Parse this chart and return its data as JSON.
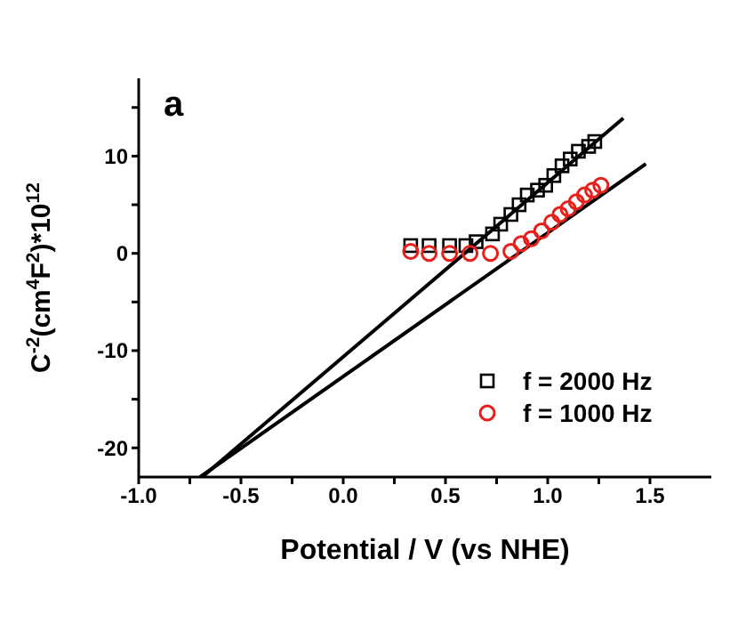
{
  "chart_data": {
    "type": "scatter",
    "xlabel": "Potential / V (vs NHE)",
    "ylabel": "C$^{-2}$(cm$^{4}$F$^{2}$)*10$^{12}$",
    "annotations": [
      "a"
    ],
    "xlim": [
      -1.0,
      1.8
    ],
    "xticks": [
      {
        "value": -1.0,
        "label": "-1.0"
      },
      {
        "value": -0.75,
        "label": null
      },
      {
        "value": -0.5,
        "label": "-0.5"
      },
      {
        "value": -0.25,
        "label": null
      },
      {
        "value": 0,
        "label": "0.0"
      },
      {
        "value": 0.25,
        "label": null
      },
      {
        "value": 0.5,
        "label": "0.5"
      },
      {
        "value": 0.75,
        "label": null
      },
      {
        "value": 1.0,
        "label": "1.0"
      },
      {
        "value": 1.25,
        "label": null
      },
      {
        "value": 1.5,
        "label": "1.5"
      }
    ],
    "ylim": [
      -23,
      18
    ],
    "yticks": [
      -20,
      {
        "value": -15,
        "label": null
      },
      -10,
      {
        "value": -5,
        "label": null
      },
      0,
      {
        "value": 5,
        "label": null
      },
      10,
      {
        "value": 15,
        "label": null
      }
    ],
    "legend": "bottom right",
    "grid": false,
    "series": [
      {
        "name": "f = 2000 Hz",
        "type": "scatter",
        "marker": "square",
        "color": "#000000",
        "x": [
          0.33,
          0.42,
          0.52,
          0.6,
          0.65,
          0.73,
          0.77,
          0.82,
          0.86,
          0.9,
          0.95,
          0.99,
          1.03,
          1.07,
          1.11,
          1.15,
          1.2,
          1.23
        ],
        "values": [
          0.8,
          0.8,
          0.8,
          0.8,
          1.2,
          2,
          3,
          4,
          5,
          6,
          6.5,
          7,
          8,
          9,
          9.7,
          10.5,
          11,
          11.5
        ]
      },
      {
        "name": "f = 1000 Hz",
        "type": "scatter",
        "marker": "circle",
        "color": "#e8201c",
        "x": [
          0.33,
          0.42,
          0.52,
          0.62,
          0.72,
          0.82,
          0.87,
          0.92,
          0.97,
          1.02,
          1.06,
          1.1,
          1.14,
          1.18,
          1.22,
          1.26
        ],
        "values": [
          0.2,
          0,
          0,
          0,
          0,
          0.2,
          1,
          1.5,
          2.3,
          3.2,
          4,
          4.6,
          5.3,
          6,
          6.5,
          7
        ]
      },
      {
        "type": "line",
        "marker": "none",
        "color": "#000000",
        "x": [
          -0.69,
          1.37
        ],
        "values": [
          -23,
          13.9
        ]
      },
      {
        "type": "line",
        "marker": "none",
        "color": "#000000",
        "x": [
          -0.7,
          1.48
        ],
        "values": [
          -23,
          9.2
        ]
      }
    ]
  }
}
